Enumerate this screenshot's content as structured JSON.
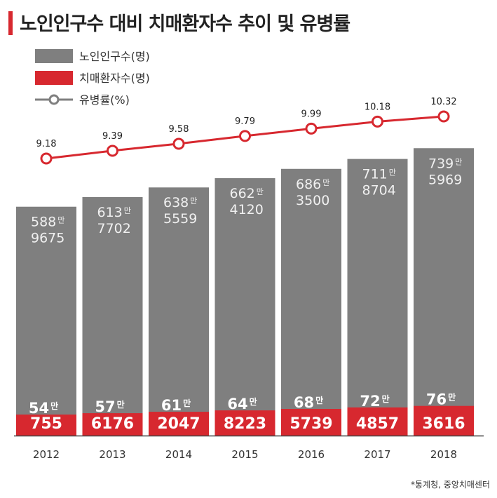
{
  "title": "노인인구수 대비 치매환자수 추이 및 유병률",
  "source": "*통계청, 중앙치매센터",
  "colors": {
    "elderly": "#7f7f7f",
    "dementia": "#d7282f",
    "line": "#d7282f",
    "label_light": "#f0f0f0",
    "accent": "#d7282f"
  },
  "chart_data": {
    "type": "bar",
    "categories": [
      "2012",
      "2013",
      "2014",
      "2015",
      "2016",
      "2017",
      "2018"
    ],
    "series": [
      {
        "name": "노인인구수(명)",
        "values": [
          5889675,
          6137702,
          6385559,
          6624120,
          6863500,
          7118704,
          7395969
        ],
        "labels": [
          [
            "588만",
            "9675"
          ],
          [
            "613만",
            "7702"
          ],
          [
            "638만",
            "5559"
          ],
          [
            "662만",
            "4120"
          ],
          [
            "686만",
            "3500"
          ],
          [
            "711만",
            "8704"
          ],
          [
            "739만",
            "5969"
          ]
        ]
      },
      {
        "name": "치매환자수(명)",
        "values": [
          540755,
          576176,
          612047,
          648223,
          685739,
          724857,
          763616
        ],
        "labels": [
          [
            "54만",
            "755"
          ],
          [
            "57만",
            "6176"
          ],
          [
            "61만",
            "2047"
          ],
          [
            "64만",
            "8223"
          ],
          [
            "68만",
            "5739"
          ],
          [
            "72만",
            "4857"
          ],
          [
            "76만",
            "3616"
          ]
        ]
      },
      {
        "name": "유병률(%)",
        "type": "line",
        "values": [
          9.18,
          9.39,
          9.58,
          9.79,
          9.99,
          10.18,
          10.32
        ],
        "labels": [
          "9.18",
          "9.39",
          "9.58",
          "9.79",
          "9.99",
          "10.18",
          "10.32"
        ]
      }
    ],
    "legend": [
      {
        "label": "노인인구수(명)",
        "kind": "bar",
        "color": "#7f7f7f"
      },
      {
        "label": "치매환자수(명)",
        "kind": "bar",
        "color": "#d7282f"
      },
      {
        "label": "유병률(%)",
        "kind": "line-marker",
        "color": "#7f7f7f"
      }
    ],
    "legend_position": "top-left",
    "grid": false
  }
}
